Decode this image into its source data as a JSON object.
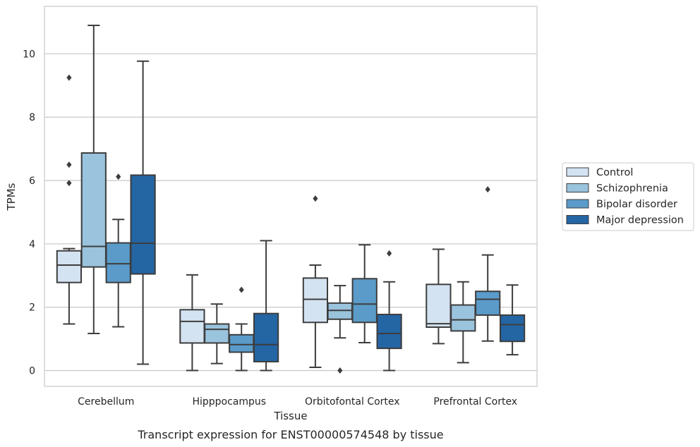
{
  "chart_data": {
    "type": "boxplot",
    "xlabel": "Tissue",
    "ylabel": "TPMs",
    "caption": "Transcript expression for ENST00000574548 by tissue",
    "ylim": [
      -0.5,
      11.5
    ],
    "yticks": [
      0,
      2,
      4,
      6,
      8,
      10
    ],
    "grid": true,
    "legend_position": "right",
    "categories": [
      "Cerebellum",
      "Hipppocampus",
      "Orbitofontal Cortex",
      "Prefrontal Cortex"
    ],
    "series": [
      {
        "name": "Control",
        "color": "#d4e3f2",
        "boxes": [
          {
            "whislo": 1.47,
            "q1": 2.78,
            "med": 3.33,
            "q3": 3.78,
            "whishi": 3.85,
            "fliers": [
              9.25,
              6.5,
              5.92
            ]
          },
          {
            "whislo": 0.0,
            "q1": 0.87,
            "med": 1.55,
            "q3": 1.92,
            "whishi": 3.02,
            "fliers": []
          },
          {
            "whislo": 0.1,
            "q1": 1.52,
            "med": 2.25,
            "q3": 2.92,
            "whishi": 3.33,
            "fliers": [
              5.43
            ]
          },
          {
            "whislo": 0.85,
            "q1": 1.37,
            "med": 1.48,
            "q3": 2.72,
            "whishi": 3.83,
            "fliers": []
          }
        ]
      },
      {
        "name": "Schizophrenia",
        "color": "#9ac3dd",
        "boxes": [
          {
            "whislo": 1.17,
            "q1": 3.27,
            "med": 3.92,
            "q3": 6.87,
            "whishi": 10.9,
            "fliers": []
          },
          {
            "whislo": 0.22,
            "q1": 0.87,
            "med": 1.3,
            "q3": 1.47,
            "whishi": 2.1,
            "fliers": []
          },
          {
            "whislo": 1.03,
            "q1": 1.62,
            "med": 1.9,
            "q3": 2.13,
            "whishi": 2.68,
            "fliers": [
              0.0
            ]
          },
          {
            "whislo": 0.25,
            "q1": 1.25,
            "med": 1.6,
            "q3": 2.07,
            "whishi": 2.8,
            "fliers": []
          }
        ]
      },
      {
        "name": "Bipolar disorder",
        "color": "#5a9bc9",
        "boxes": [
          {
            "whislo": 1.38,
            "q1": 2.78,
            "med": 3.37,
            "q3": 4.03,
            "whishi": 4.77,
            "fliers": [
              6.12
            ]
          },
          {
            "whislo": 0.0,
            "q1": 0.58,
            "med": 0.82,
            "q3": 1.13,
            "whishi": 1.47,
            "fliers": [
              2.55
            ]
          },
          {
            "whislo": 0.88,
            "q1": 1.52,
            "med": 2.1,
            "q3": 2.9,
            "whishi": 3.97,
            "fliers": []
          },
          {
            "whislo": 0.93,
            "q1": 1.75,
            "med": 2.25,
            "q3": 2.5,
            "whishi": 3.65,
            "fliers": [
              5.72
            ]
          }
        ]
      },
      {
        "name": "Major depression",
        "color": "#2465a4",
        "boxes": [
          {
            "whislo": 0.2,
            "q1": 3.05,
            "med": 4.02,
            "q3": 6.17,
            "whishi": 9.77,
            "fliers": []
          },
          {
            "whislo": 0.0,
            "q1": 0.28,
            "med": 0.82,
            "q3": 1.8,
            "whishi": 4.1,
            "fliers": []
          },
          {
            "whislo": 0.0,
            "q1": 0.7,
            "med": 1.17,
            "q3": 1.77,
            "whishi": 2.8,
            "fliers": [
              3.7
            ]
          },
          {
            "whislo": 0.5,
            "q1": 0.92,
            "med": 1.45,
            "q3": 1.75,
            "whishi": 2.7,
            "fliers": []
          }
        ]
      }
    ]
  }
}
